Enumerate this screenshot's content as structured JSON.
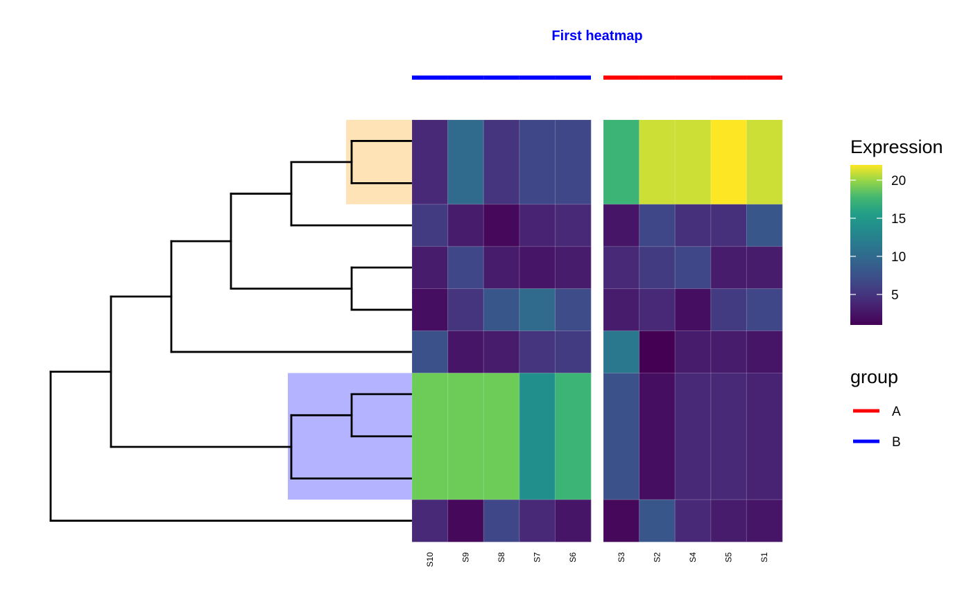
{
  "chart_data": {
    "type": "heatmap",
    "title": "First heatmap",
    "title_color": "#0000ff",
    "colorscale": "viridis",
    "color_range": [
      1,
      22
    ],
    "split_gap_after_column": 4,
    "columns": [
      "S10",
      "S9",
      "S8",
      "S7",
      "S6",
      "S3",
      "S2",
      "S4",
      "S5",
      "S1"
    ],
    "column_groups": [
      "B",
      "B",
      "B",
      "B",
      "B",
      "A",
      "A",
      "A",
      "A",
      "A"
    ],
    "row_heights": [
      2,
      1,
      1,
      1,
      1,
      3,
      1
    ],
    "values": [
      [
        4.0,
        10.0,
        5.0,
        6.5,
        6.5,
        17.5,
        21.0,
        21.0,
        22.0,
        21.0
      ],
      [
        5.5,
        3.0,
        1.5,
        3.5,
        4.0,
        2.5,
        6.5,
        4.5,
        4.5,
        8.0
      ],
      [
        3.0,
        6.5,
        3.0,
        2.5,
        3.0,
        4.0,
        5.5,
        6.5,
        3.0,
        3.0
      ],
      [
        2.0,
        5.0,
        8.0,
        10.0,
        7.0,
        3.0,
        4.0,
        2.0,
        5.5,
        6.5
      ],
      [
        7.5,
        2.5,
        3.0,
        5.0,
        5.5,
        11.5,
        1.0,
        3.0,
        3.0,
        2.5
      ],
      [
        19.0,
        19.0,
        19.0,
        14.0,
        17.5,
        7.5,
        2.0,
        4.0,
        4.0,
        3.5
      ],
      [
        4.0,
        1.5,
        6.5,
        4.0,
        2.5,
        1.5,
        8.0,
        4.0,
        3.0,
        2.5
      ]
    ],
    "row_highlights": [
      {
        "rows": [
          0,
          0
        ],
        "color": "#fde3b5"
      },
      {
        "rows": [
          5,
          5
        ],
        "color": "#b3b3ff"
      }
    ],
    "legend": {
      "title": "Expression",
      "ticks": [
        5,
        10,
        15,
        20
      ]
    },
    "group_legend": {
      "title": "group",
      "items": [
        {
          "label": "A",
          "color": "#ff0000"
        },
        {
          "label": "B",
          "color": "#0000ff"
        }
      ]
    }
  }
}
